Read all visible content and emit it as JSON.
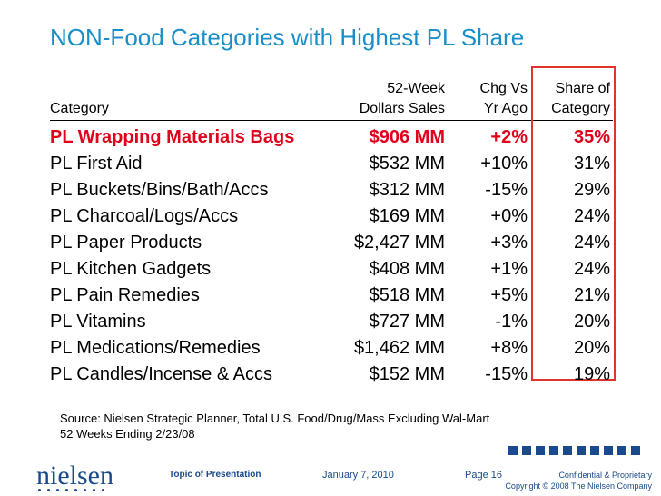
{
  "title": "NON-Food Categories with Highest PL Share",
  "headers": {
    "category": "Category",
    "sales_line1": "52-Week",
    "sales_line2": "Dollars Sales",
    "chg_line1": "Chg Vs",
    "chg_line2": "Yr Ago",
    "share_line1": "Share of",
    "share_line2": "Category"
  },
  "rows": [
    {
      "category": "PL Wrapping Materials Bags",
      "sales": "$906 MM",
      "chg": "+2%",
      "share": "35%"
    },
    {
      "category": "PL First Aid",
      "sales": "$532 MM",
      "chg": "+10%",
      "share": "31%"
    },
    {
      "category": "PL Buckets/Bins/Bath/Accs",
      "sales": "$312 MM",
      "chg": "-15%",
      "share": "29%"
    },
    {
      "category": "PL Charcoal/Logs/Accs",
      "sales": "$169 MM",
      "chg": "+0%",
      "share": "24%"
    },
    {
      "category": "PL Paper Products",
      "sales": "$2,427 MM",
      "chg": "+3%",
      "share": "24%"
    },
    {
      "category": "PL Kitchen Gadgets",
      "sales": "$408 MM",
      "chg": "+1%",
      "share": "24%"
    },
    {
      "category": "PL Pain Remedies",
      "sales": "$518 MM",
      "chg": "+5%",
      "share": "21%"
    },
    {
      "category": "PL Vitamins",
      "sales": "$727 MM",
      "chg": "-1%",
      "share": "20%"
    },
    {
      "category": "PL Medications/Remedies",
      "sales": "$1,462 MM",
      "chg": "+8%",
      "share": "20%"
    },
    {
      "category": "PL Candles/Incense & Accs",
      "sales": "$152 MM",
      "chg": "-15%",
      "share": "19%"
    }
  ],
  "source_line1": "Source: Nielsen Strategic Planner, Total U.S. Food/Drug/Mass Excluding Wal-Mart",
  "source_line2": "52 Weeks Ending 2/23/08",
  "footer": {
    "logo": "nielsen",
    "topic": "Topic of Presentation",
    "date": "January 7, 2010",
    "page": "Page 16",
    "confidential": "Confidential & Proprietary",
    "copyright": "Copyright © 2008 The Nielsen Company"
  },
  "colors": {
    "title": "#1a8ec9",
    "highlight": "#e0001b",
    "brand": "#1a4a8c",
    "box": "#e0332b"
  }
}
